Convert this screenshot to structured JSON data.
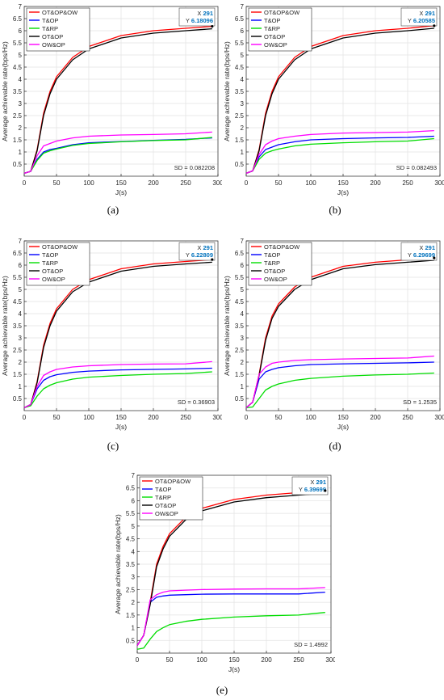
{
  "panel_labels": [
    "(a)",
    "(b)",
    "(c)",
    "(d)",
    "(e)"
  ],
  "chart_data": [
    {
      "type": "line",
      "xlabel": "J(s)",
      "ylabel": "Average achievable rate(bps/Hz)",
      "xlim": [
        0,
        300
      ],
      "ylim": [
        0,
        7
      ],
      "xticks": [
        "0",
        "50",
        "100",
        "150",
        "200",
        "250",
        "300"
      ],
      "yticks": [
        "0.5",
        "1",
        "1.5",
        "2",
        "2.5",
        "3",
        "3.5",
        "4",
        "4.5",
        "5",
        "5.5",
        "6",
        "6.5",
        "7"
      ],
      "grid": true,
      "legend_position": "top-left",
      "datatip": {
        "x_label": "X",
        "x_value": "291",
        "y_label": "Y",
        "y_value": "6.18096"
      },
      "annotation": "SD = 0.082208",
      "series": [
        {
          "name": "OT&OP&OW",
          "color": "#ff0000",
          "x": [
            0,
            10,
            20,
            30,
            40,
            50,
            75,
            100,
            150,
            200,
            250,
            291
          ],
          "y": [
            0.12,
            0.2,
            1.1,
            2.6,
            3.5,
            4.1,
            4.9,
            5.35,
            5.8,
            6.0,
            6.1,
            6.18
          ]
        },
        {
          "name": "T&OP",
          "color": "#0000ff",
          "x": [
            0,
            10,
            20,
            30,
            40,
            50,
            75,
            100,
            150,
            200,
            250,
            291
          ],
          "y": [
            0.12,
            0.2,
            0.7,
            1.0,
            1.1,
            1.15,
            1.3,
            1.38,
            1.43,
            1.48,
            1.52,
            1.58
          ]
        },
        {
          "name": "T&RP",
          "color": "#00dd00",
          "x": [
            0,
            10,
            20,
            30,
            40,
            50,
            75,
            100,
            150,
            200,
            250,
            291
          ],
          "y": [
            0.12,
            0.2,
            0.65,
            0.95,
            1.05,
            1.12,
            1.27,
            1.35,
            1.42,
            1.47,
            1.5,
            1.6
          ]
        },
        {
          "name": "OT&OP",
          "color": "#000000",
          "x": [
            0,
            10,
            20,
            30,
            40,
            50,
            75,
            100,
            150,
            200,
            250,
            291
          ],
          "y": [
            0.12,
            0.2,
            1.05,
            2.5,
            3.4,
            4.0,
            4.8,
            5.25,
            5.7,
            5.9,
            6.0,
            6.08
          ]
        },
        {
          "name": "OW&OP",
          "color": "#ff00ff",
          "x": [
            0,
            10,
            20,
            30,
            40,
            50,
            75,
            100,
            150,
            200,
            250,
            291
          ],
          "y": [
            0.12,
            0.2,
            0.85,
            1.25,
            1.35,
            1.45,
            1.58,
            1.65,
            1.7,
            1.72,
            1.75,
            1.82
          ]
        }
      ]
    },
    {
      "type": "line",
      "xlabel": "J(s)",
      "ylabel": "Average achievable rate(bps/Hz)",
      "xlim": [
        0,
        300
      ],
      "ylim": [
        0,
        7
      ],
      "xticks": [
        "0",
        "50",
        "100",
        "150",
        "200",
        "250",
        "300"
      ],
      "yticks": [
        "0.5",
        "1",
        "1.5",
        "2",
        "2.5",
        "3",
        "3.5",
        "4",
        "4.5",
        "5",
        "5.5",
        "6",
        "6.5",
        "7"
      ],
      "grid": true,
      "legend_position": "top-left",
      "datatip": {
        "x_label": "X",
        "x_value": "291",
        "y_label": "Y",
        "y_value": "6.20585"
      },
      "annotation": "SD = 0.082493",
      "series": [
        {
          "name": "OT&OP&OW",
          "color": "#ff0000",
          "x": [
            0,
            10,
            20,
            30,
            40,
            50,
            75,
            100,
            150,
            200,
            250,
            291
          ],
          "y": [
            0.12,
            0.22,
            1.1,
            2.6,
            3.5,
            4.1,
            4.9,
            5.35,
            5.8,
            6.0,
            6.1,
            6.21
          ]
        },
        {
          "name": "T&OP",
          "color": "#0000ff",
          "x": [
            0,
            10,
            20,
            30,
            40,
            50,
            75,
            100,
            150,
            200,
            250,
            291
          ],
          "y": [
            0.12,
            0.22,
            0.8,
            1.1,
            1.2,
            1.3,
            1.42,
            1.5,
            1.55,
            1.58,
            1.6,
            1.65
          ]
        },
        {
          "name": "T&RP",
          "color": "#00dd00",
          "x": [
            0,
            10,
            20,
            30,
            40,
            50,
            75,
            100,
            150,
            200,
            250,
            291
          ],
          "y": [
            0.12,
            0.22,
            0.7,
            0.95,
            1.05,
            1.12,
            1.25,
            1.32,
            1.38,
            1.42,
            1.45,
            1.55
          ]
        },
        {
          "name": "OT&OP",
          "color": "#000000",
          "x": [
            0,
            10,
            20,
            30,
            40,
            50,
            75,
            100,
            150,
            200,
            250,
            291
          ],
          "y": [
            0.12,
            0.22,
            1.05,
            2.5,
            3.4,
            4.0,
            4.8,
            5.25,
            5.7,
            5.9,
            6.0,
            6.1
          ]
        },
        {
          "name": "OW&OP",
          "color": "#ff00ff",
          "x": [
            0,
            10,
            20,
            30,
            40,
            50,
            75,
            100,
            150,
            200,
            250,
            291
          ],
          "y": [
            0.12,
            0.22,
            0.9,
            1.3,
            1.45,
            1.55,
            1.65,
            1.72,
            1.78,
            1.8,
            1.82,
            1.88
          ]
        }
      ]
    },
    {
      "type": "line",
      "xlabel": "J(s)",
      "ylabel": "Average achievable rate(bps/Hz)",
      "xlim": [
        0,
        300
      ],
      "ylim": [
        0,
        7
      ],
      "xticks": [
        "0",
        "50",
        "100",
        "150",
        "200",
        "250",
        "300"
      ],
      "yticks": [
        "0.5",
        "1",
        "1.5",
        "2",
        "2.5",
        "3",
        "3.5",
        "4",
        "4.5",
        "5",
        "5.5",
        "6",
        "6.5",
        "7"
      ],
      "grid": true,
      "legend_position": "top-left",
      "datatip": {
        "x_label": "X",
        "x_value": "291",
        "y_label": "Y",
        "y_value": "6.22809"
      },
      "annotation": "SD = 0.36903",
      "series": [
        {
          "name": "OT&OP&OW",
          "color": "#ff0000",
          "x": [
            0,
            10,
            20,
            30,
            40,
            50,
            75,
            100,
            150,
            200,
            250,
            291
          ],
          "y": [
            0.12,
            0.25,
            1.2,
            2.7,
            3.6,
            4.2,
            5.0,
            5.4,
            5.85,
            6.05,
            6.15,
            6.23
          ]
        },
        {
          "name": "T&OP",
          "color": "#0000ff",
          "x": [
            0,
            10,
            20,
            30,
            40,
            50,
            75,
            100,
            150,
            200,
            250,
            291
          ],
          "y": [
            0.12,
            0.25,
            0.9,
            1.25,
            1.4,
            1.48,
            1.58,
            1.63,
            1.68,
            1.7,
            1.72,
            1.75
          ]
        },
        {
          "name": "T&RP",
          "color": "#00dd00",
          "x": [
            0,
            10,
            20,
            30,
            40,
            50,
            75,
            100,
            150,
            200,
            250,
            291
          ],
          "y": [
            0.12,
            0.2,
            0.6,
            0.9,
            1.05,
            1.15,
            1.3,
            1.38,
            1.45,
            1.5,
            1.53,
            1.6
          ]
        },
        {
          "name": "OT&OP",
          "color": "#000000",
          "x": [
            0,
            10,
            20,
            30,
            40,
            50,
            75,
            100,
            150,
            200,
            250,
            291
          ],
          "y": [
            0.12,
            0.25,
            1.15,
            2.6,
            3.5,
            4.1,
            4.9,
            5.3,
            5.75,
            5.95,
            6.05,
            6.12
          ]
        },
        {
          "name": "OW&OP",
          "color": "#ff00ff",
          "x": [
            0,
            10,
            20,
            30,
            40,
            50,
            75,
            100,
            150,
            200,
            250,
            291
          ],
          "y": [
            0.12,
            0.25,
            1.0,
            1.45,
            1.6,
            1.7,
            1.8,
            1.85,
            1.9,
            1.92,
            1.93,
            2.02
          ]
        }
      ]
    },
    {
      "type": "line",
      "xlabel": "J(s)",
      "ylabel": "Average achievable rate(bps/Hz)",
      "xlim": [
        0,
        300
      ],
      "ylim": [
        0,
        7
      ],
      "xticks": [
        "0",
        "50",
        "100",
        "150",
        "200",
        "250",
        "300"
      ],
      "yticks": [
        "0.5",
        "1",
        "1.5",
        "2",
        "2.5",
        "3",
        "3.5",
        "4",
        "4.5",
        "5",
        "5.5",
        "6",
        "6.5",
        "7"
      ],
      "grid": true,
      "legend_position": "top-left",
      "datatip": {
        "x_label": "X",
        "x_value": "291",
        "y_label": "Y",
        "y_value": "6.29699"
      },
      "annotation": "SD = 1.2535",
      "series": [
        {
          "name": "OT&OP&OW",
          "color": "#ff0000",
          "x": [
            0,
            10,
            20,
            30,
            40,
            50,
            75,
            100,
            150,
            200,
            250,
            291
          ],
          "y": [
            0.12,
            0.35,
            1.5,
            3.0,
            3.9,
            4.4,
            5.1,
            5.5,
            5.95,
            6.12,
            6.22,
            6.3
          ]
        },
        {
          "name": "T&OP",
          "color": "#0000ff",
          "x": [
            0,
            10,
            20,
            30,
            40,
            50,
            75,
            100,
            150,
            200,
            250,
            291
          ],
          "y": [
            0.12,
            0.35,
            1.3,
            1.6,
            1.7,
            1.77,
            1.85,
            1.9,
            1.93,
            1.95,
            1.97,
            2.0
          ]
        },
        {
          "name": "T&RP",
          "color": "#00dd00",
          "x": [
            0,
            10,
            20,
            30,
            40,
            50,
            75,
            100,
            150,
            200,
            250,
            291
          ],
          "y": [
            0.12,
            0.15,
            0.5,
            0.85,
            1.0,
            1.1,
            1.25,
            1.33,
            1.42,
            1.47,
            1.5,
            1.55
          ]
        },
        {
          "name": "OT&OP",
          "color": "#000000",
          "x": [
            0,
            10,
            20,
            30,
            40,
            50,
            75,
            100,
            150,
            200,
            250,
            291
          ],
          "y": [
            0.12,
            0.35,
            1.45,
            2.9,
            3.8,
            4.3,
            5.0,
            5.4,
            5.85,
            6.02,
            6.12,
            6.2
          ]
        },
        {
          "name": "OW&OP",
          "color": "#ff00ff",
          "x": [
            0,
            10,
            20,
            30,
            40,
            50,
            75,
            100,
            150,
            200,
            250,
            291
          ],
          "y": [
            0.12,
            0.35,
            1.5,
            1.8,
            1.95,
            2.0,
            2.07,
            2.1,
            2.13,
            2.15,
            2.17,
            2.25
          ]
        }
      ]
    },
    {
      "type": "line",
      "xlabel": "J(s)",
      "ylabel": "Average achievable rate(bps/Hz)",
      "xlim": [
        0,
        300
      ],
      "ylim": [
        0,
        7
      ],
      "xticks": [
        "0",
        "50",
        "100",
        "150",
        "200",
        "250",
        "300"
      ],
      "yticks": [
        "0.5",
        "1",
        "1.5",
        "2",
        "2.5",
        "3",
        "3.5",
        "4",
        "4.5",
        "5",
        "5.5",
        "6",
        "6.5",
        "7"
      ],
      "grid": true,
      "legend_position": "top-left",
      "datatip": {
        "x_label": "X",
        "x_value": "291",
        "y_label": "Y",
        "y_value": "6.39699"
      },
      "annotation": "SD = 1.4992",
      "series": [
        {
          "name": "OT&OP&OW",
          "color": "#ff0000",
          "x": [
            0,
            10,
            20,
            30,
            40,
            50,
            75,
            100,
            150,
            200,
            250,
            291
          ],
          "y": [
            0.3,
            0.7,
            2.0,
            3.5,
            4.2,
            4.7,
            5.35,
            5.7,
            6.05,
            6.22,
            6.32,
            6.4
          ]
        },
        {
          "name": "T&OP",
          "color": "#0000ff",
          "x": [
            0,
            10,
            20,
            30,
            40,
            50,
            75,
            100,
            150,
            200,
            250,
            291
          ],
          "y": [
            0.3,
            0.7,
            2.0,
            2.2,
            2.25,
            2.28,
            2.3,
            2.32,
            2.33,
            2.33,
            2.33,
            2.4
          ]
        },
        {
          "name": "T&RP",
          "color": "#00dd00",
          "x": [
            0,
            10,
            20,
            30,
            40,
            50,
            75,
            100,
            150,
            200,
            250,
            291
          ],
          "y": [
            0.15,
            0.2,
            0.55,
            0.85,
            1.0,
            1.12,
            1.25,
            1.33,
            1.42,
            1.47,
            1.5,
            1.6
          ]
        },
        {
          "name": "OT&OP",
          "color": "#000000",
          "x": [
            0,
            10,
            20,
            30,
            40,
            50,
            75,
            100,
            150,
            200,
            250,
            291
          ],
          "y": [
            0.3,
            0.7,
            1.9,
            3.4,
            4.1,
            4.6,
            5.25,
            5.6,
            5.95,
            6.12,
            6.22,
            6.3
          ]
        },
        {
          "name": "OW&OP",
          "color": "#ff00ff",
          "x": [
            0,
            10,
            20,
            30,
            40,
            50,
            75,
            100,
            150,
            200,
            250,
            291
          ],
          "y": [
            0.3,
            0.7,
            2.1,
            2.3,
            2.4,
            2.45,
            2.48,
            2.5,
            2.52,
            2.53,
            2.53,
            2.58
          ]
        }
      ]
    }
  ]
}
